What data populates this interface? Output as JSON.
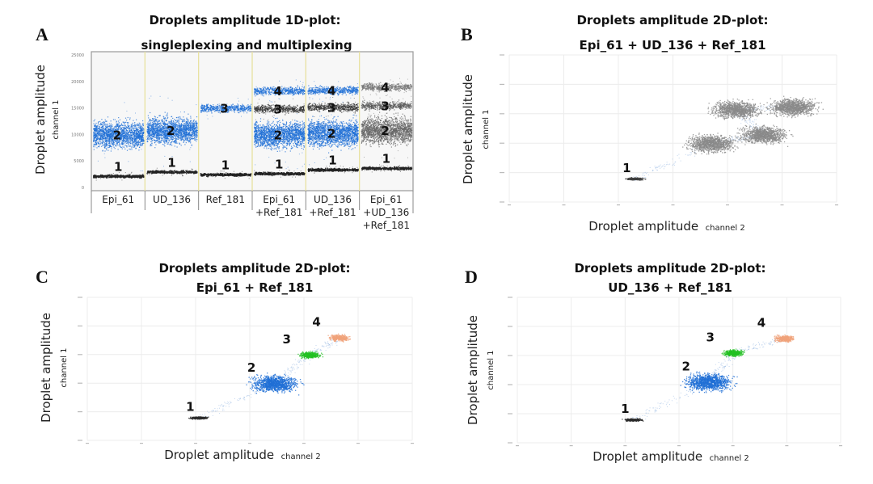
{
  "panels": [
    {
      "letter": "A",
      "title": [
        "Droplets amplitude 1D-plot:",
        "singleplexing and multiplexing"
      ],
      "ylabel": "Droplet amplitude",
      "ylabel_sub": "channel 1",
      "chart_data": {
        "type": "scatter",
        "y_ticks": [
          "25000",
          "20000",
          "15000",
          "10000",
          "5000",
          "0"
        ],
        "lanes": [
          {
            "label": [
              "Epi_61"
            ],
            "clusters": [
              {
                "label": "1",
                "level": 2200,
                "color": "#222222"
              },
              {
                "label": "2",
                "level": 10000,
                "color": "#1f6fd6"
              }
            ]
          },
          {
            "label": [
              "UD_136"
            ],
            "clusters": [
              {
                "label": "1",
                "level": 3000,
                "color": "#222222"
              },
              {
                "label": "2",
                "level": 10800,
                "color": "#1f6fd6"
              }
            ]
          },
          {
            "label": [
              "Ref_181"
            ],
            "clusters": [
              {
                "label": "1",
                "level": 2500,
                "color": "#222222"
              },
              {
                "label": "3",
                "level": 15000,
                "color": "#1f6fd6"
              }
            ]
          },
          {
            "label": [
              "Epi_61",
              "+Ref_181"
            ],
            "clusters": [
              {
                "label": "1",
                "level": 2700,
                "color": "#222222"
              },
              {
                "label": "2",
                "level": 10000,
                "color": "#1f6fd6"
              },
              {
                "label": "3",
                "level": 14900,
                "color": "#333333"
              },
              {
                "label": "4",
                "level": 18300,
                "color": "#1f6fd6"
              }
            ]
          },
          {
            "label": [
              "UD_136",
              "+Ref_181"
            ],
            "clusters": [
              {
                "label": "1",
                "level": 3400,
                "color": "#222222"
              },
              {
                "label": "2",
                "level": 10300,
                "color": "#1f6fd6"
              },
              {
                "label": "3",
                "level": 15200,
                "color": "#333333"
              },
              {
                "label": "4",
                "level": 18400,
                "color": "#1f6fd6"
              }
            ]
          },
          {
            "label": [
              "Epi_61",
              "+UD_136",
              "+Ref_181"
            ],
            "clusters": [
              {
                "label": "1",
                "level": 3700,
                "color": "#222222"
              },
              {
                "label": "2",
                "level": 10800,
                "color": "#666666"
              },
              {
                "label": "3",
                "level": 15500,
                "color": "#555555"
              },
              {
                "label": "4",
                "level": 19000,
                "color": "#777777"
              }
            ]
          }
        ]
      }
    },
    {
      "letter": "B",
      "title": [
        "Droplets amplitude 2D-plot:",
        "Epi_61 + UD_136 + Ref_181"
      ],
      "ylabel": "Droplet amplitude",
      "ylabel_sub": "channel 1",
      "xlabel": "Droplet amplitude",
      "xlabel_sub": "channel 2",
      "chart_data": {
        "type": "scatter",
        "x_range": [
          0,
          6000
        ],
        "y_range": [
          0,
          25000
        ],
        "clusters": [
          {
            "label": "1",
            "x": 2300,
            "y": 4000,
            "color": "#404040"
          },
          {
            "label": "",
            "x": 3700,
            "y": 10000,
            "color": "#8a8a8a"
          },
          {
            "label": "",
            "x": 4650,
            "y": 11500,
            "color": "#8a8a8a"
          },
          {
            "label": "",
            "x": 4150,
            "y": 15800,
            "color": "#8a8a8a"
          },
          {
            "label": "",
            "x": 5200,
            "y": 16200,
            "color": "#8a8a8a"
          }
        ]
      }
    },
    {
      "letter": "C",
      "title": [
        "Droplets amplitude 2D-plot:",
        "Epi_61 + Ref_181"
      ],
      "ylabel": "Droplet amplitude",
      "ylabel_sub": "channel 1",
      "xlabel": "Droplet amplitude",
      "xlabel_sub": "channel 2",
      "chart_data": {
        "type": "scatter",
        "x_range": [
          0,
          6000
        ],
        "y_range": [
          0,
          25000
        ],
        "clusters": [
          {
            "label": "1",
            "x": 2050,
            "y": 4000,
            "color": "#2a2a2a"
          },
          {
            "label": "2",
            "x": 3450,
            "y": 10000,
            "color": "#1f6fd6"
          },
          {
            "label": "3",
            "x": 4100,
            "y": 15000,
            "color": "#22c022"
          },
          {
            "label": "4",
            "x": 4650,
            "y": 18000,
            "color": "#f0a27a"
          }
        ]
      }
    },
    {
      "letter": "D",
      "title": [
        "Droplets amplitude 2D-plot:",
        "UD_136 + Ref_181"
      ],
      "ylabel": "Droplet amplitude",
      "ylabel_sub": "channel 1",
      "xlabel": "Droplet amplitude",
      "xlabel_sub": "channel 2",
      "chart_data": {
        "type": "scatter",
        "x_range": [
          0,
          6000
        ],
        "y_range": [
          0,
          25000
        ],
        "clusters": [
          {
            "label": "1",
            "x": 2150,
            "y": 4000,
            "color": "#2a2a2a"
          },
          {
            "label": "2",
            "x": 3550,
            "y": 10500,
            "color": "#1f6fd6"
          },
          {
            "label": "3",
            "x": 4000,
            "y": 15500,
            "color": "#22c022"
          },
          {
            "label": "4",
            "x": 4950,
            "y": 18000,
            "color": "#f0a27a"
          }
        ]
      }
    }
  ]
}
